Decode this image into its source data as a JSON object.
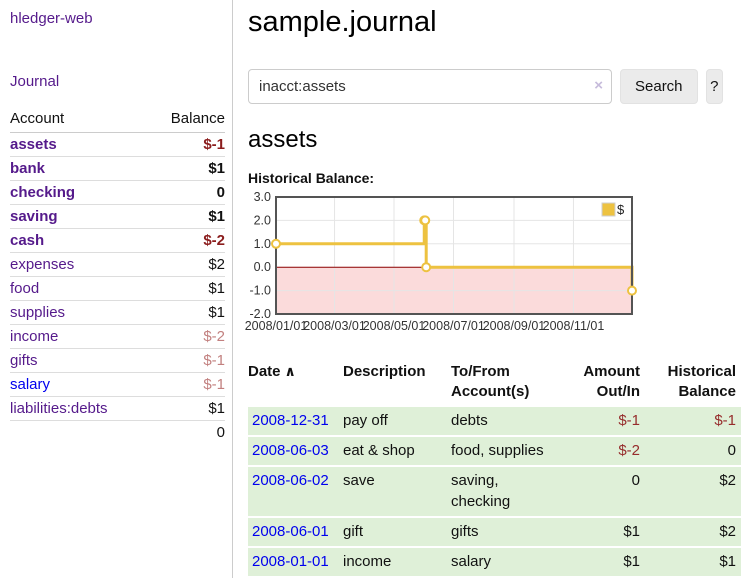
{
  "colors": {
    "link_purple": "#551A8B",
    "link_blue": "#0000EE",
    "negative_strong": "#8b1d1d",
    "negative_muted": "#c2807f",
    "register_row_green": "#dff0d8",
    "chart_line_gold": "#edc240",
    "chart_negative_fill": "#fbdbdb",
    "chart_zero_line": "#8b0000",
    "chart_border": "#545454",
    "chart_grid": "#e5e5e5"
  },
  "sidebar": {
    "app_title": "hledger-web",
    "nav": {
      "journal_label": "Journal"
    },
    "accounts_table": {
      "headers": {
        "account": "Account",
        "balance": "Balance"
      },
      "rows": [
        {
          "name": "assets",
          "balance": "$-1",
          "indent": 1,
          "bold": true,
          "balance_style": "neg-strong"
        },
        {
          "name": "bank",
          "balance": "$1",
          "indent": 2,
          "bold": true,
          "balance_style": "pos-strong"
        },
        {
          "name": "checking",
          "balance": "0",
          "indent": 3,
          "bold": true,
          "balance_style": "pos-strong"
        },
        {
          "name": "saving",
          "balance": "$1",
          "indent": 3,
          "bold": true,
          "balance_style": "pos-strong"
        },
        {
          "name": "cash",
          "balance": "$-2",
          "indent": 2,
          "bold": true,
          "balance_style": "neg-strong"
        },
        {
          "name": "expenses",
          "balance": "$2",
          "indent": 1,
          "bold": false,
          "balance_style": "pos"
        },
        {
          "name": "food",
          "balance": "$1",
          "indent": 2,
          "bold": false,
          "balance_style": "pos"
        },
        {
          "name": "supplies",
          "balance": "$1",
          "indent": 2,
          "bold": false,
          "balance_style": "pos"
        },
        {
          "name": "income",
          "balance": "$-2",
          "indent": 1,
          "bold": false,
          "balance_style": "neg-muted"
        },
        {
          "name": "gifts",
          "balance": "$-1",
          "indent": 2,
          "bold": false,
          "balance_style": "neg-muted"
        },
        {
          "name": "salary",
          "balance": "$-1",
          "indent": 2,
          "bold": false,
          "balance_style": "neg-muted",
          "link_style": "unvisited"
        },
        {
          "name": "liabilities:debts",
          "balance": "$1",
          "indent": 1,
          "bold": false,
          "balance_style": "pos"
        }
      ],
      "total": "0"
    }
  },
  "header": {
    "title": "sample.journal"
  },
  "search": {
    "query": "inacct:assets",
    "clear_icon": "×",
    "button_label": "Search",
    "help_label": "?"
  },
  "account_page": {
    "heading": "assets",
    "chart_label": "Historical Balance:"
  },
  "chart_data": {
    "type": "line",
    "style": "step-after",
    "title": "Historical Balance:",
    "ylim": [
      -2.0,
      3.0
    ],
    "yticks": [
      {
        "v": 3.0,
        "label": "3.0"
      },
      {
        "v": 2.0,
        "label": "2.0"
      },
      {
        "v": 1.0,
        "label": "1.0"
      },
      {
        "v": 0.0,
        "label": "0.0"
      },
      {
        "v": -1.0,
        "label": "-1.0"
      },
      {
        "v": -2.0,
        "label": "-2.0"
      }
    ],
    "x_range": [
      "2008-01-01",
      "2008-12-31"
    ],
    "xticks": [
      {
        "date": "2008-01-01",
        "label": "2008/01/01"
      },
      {
        "date": "2008-03-01",
        "label": "2008/03/01"
      },
      {
        "date": "2008-05-01",
        "label": "2008/05/01"
      },
      {
        "date": "2008-07-01",
        "label": "2008/07/01"
      },
      {
        "date": "2008-09-01",
        "label": "2008/09/01"
      },
      {
        "date": "2008-11-01",
        "label": "2008/11/01"
      }
    ],
    "series": [
      {
        "name": "$",
        "color": "#edc240",
        "points": [
          {
            "date": "2008-01-01",
            "value": 1.0
          },
          {
            "date": "2008-06-01",
            "value": 2.0
          },
          {
            "date": "2008-06-02",
            "value": 2.0
          },
          {
            "date": "2008-06-03",
            "value": 0.0
          },
          {
            "date": "2008-12-31",
            "value": -1.0
          }
        ]
      }
    ],
    "legend": {
      "label": "$",
      "position": "top-right"
    },
    "grid": true,
    "negative_region_color": "#fbdbdb",
    "zero_line_color": "#8b0000",
    "border_color": "#545454",
    "grid_color": "#e5e5e5"
  },
  "register_table": {
    "headers": {
      "date": "Date",
      "sort_icon": "∧",
      "description": "Description",
      "account": "To/From Account(s)",
      "amount": "Amount Out/In",
      "balance": "Historical Balance"
    },
    "rows": [
      {
        "date": "2008-12-31",
        "description": "pay off",
        "accounts": "debts",
        "amount": "$-1",
        "amount_negative": true,
        "balance": "$-1",
        "balance_negative": true
      },
      {
        "date": "2008-06-03",
        "description": "eat & shop",
        "accounts": "food, supplies",
        "amount": "$-2",
        "amount_negative": true,
        "balance": "0",
        "balance_negative": false
      },
      {
        "date": "2008-06-02",
        "description": "save",
        "accounts": "saving, checking",
        "amount": "0",
        "amount_negative": false,
        "balance": "$2",
        "balance_negative": false
      },
      {
        "date": "2008-06-01",
        "description": "gift",
        "accounts": "gifts",
        "amount": "$1",
        "amount_negative": false,
        "balance": "$2",
        "balance_negative": false
      },
      {
        "date": "2008-01-01",
        "description": "income",
        "accounts": "salary",
        "amount": "$1",
        "amount_negative": false,
        "balance": "$1",
        "balance_negative": false
      }
    ]
  }
}
